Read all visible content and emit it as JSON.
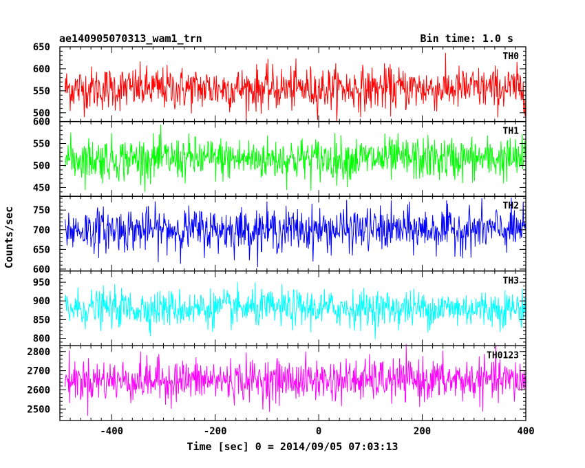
{
  "header": {
    "title": "ae140905070313_wam1_trn",
    "bin_time": "Bin time: 1.0 s"
  },
  "chart_data": {
    "type": "line",
    "title": "ae140905070313_wam1_trn",
    "subtitle": "Bin time: 1.0 s",
    "xlabel": "Time [sec] 0 = 2014/09/05 07:03:13",
    "ylabel": "Counts/sec",
    "xlim": [
      -500,
      400
    ],
    "x_ticks": [
      -400,
      -200,
      0,
      200,
      400
    ],
    "bin_seconds": 1.0,
    "grid": false,
    "panels": [
      {
        "name": "TH0",
        "color": "#ff0000",
        "ylim": [
          480,
          650
        ],
        "y_ticks": [
          500,
          550,
          600,
          650
        ],
        "mean": 555,
        "noise_amplitude": 45,
        "min": 480,
        "max": 650
      },
      {
        "name": "TH1",
        "color": "#00ff00",
        "ylim": [
          430,
          600
        ],
        "y_ticks": [
          450,
          500,
          550,
          600
        ],
        "mean": 515,
        "noise_amplitude": 45,
        "min": 440,
        "max": 600
      },
      {
        "name": "TH2",
        "color": "#0000ff",
        "ylim": [
          595,
          785
        ],
        "y_ticks": [
          600,
          650,
          700,
          750
        ],
        "mean": 700,
        "noise_amplitude": 50,
        "min": 605,
        "max": 790
      },
      {
        "name": "TH3",
        "color": "#00ffff",
        "ylim": [
          780,
          980
        ],
        "y_ticks": [
          800,
          850,
          900,
          950
        ],
        "mean": 880,
        "noise_amplitude": 45,
        "min": 790,
        "max": 980
      },
      {
        "name": "TH0123",
        "color": "#ff00ff",
        "ylim": [
          2440,
          2830
        ],
        "y_ticks": [
          2500,
          2600,
          2700,
          2800
        ],
        "mean": 2650,
        "noise_amplitude": 100,
        "min": 2460,
        "max": 2840
      }
    ]
  }
}
